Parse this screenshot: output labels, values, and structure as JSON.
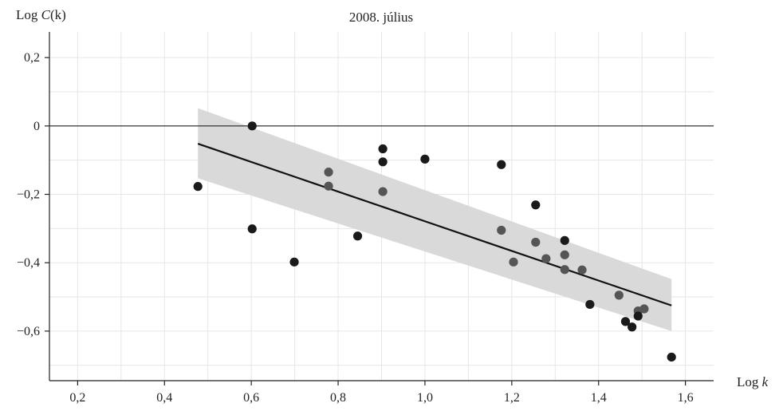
{
  "chart_data": {
    "type": "scatter",
    "title": "2008. július",
    "ylabel_pre": "Log ",
    "ylabel_var": "C",
    "ylabel_post": "(k)",
    "xlabel_pre": "Log ",
    "xlabel_var": "k",
    "xlim": [
      0.135,
      1.665
    ],
    "ylim": [
      -0.745,
      0.275
    ],
    "x_ticks": [
      {
        "value": 0.2,
        "label": "0,2"
      },
      {
        "value": 0.4,
        "label": "0,4"
      },
      {
        "value": 0.6,
        "label": "0,6"
      },
      {
        "value": 0.8,
        "label": "0,8"
      },
      {
        "value": 1.0,
        "label": "1,0"
      },
      {
        "value": 1.2,
        "label": "1,2"
      },
      {
        "value": 1.4,
        "label": "1,4"
      },
      {
        "value": 1.6,
        "label": "1,6"
      }
    ],
    "y_ticks": [
      {
        "value": 0.2,
        "label": "0,2"
      },
      {
        "value": 0.0,
        "label": "0"
      },
      {
        "value": -0.2,
        "label": "−0,2"
      },
      {
        "value": -0.4,
        "label": "−0,4"
      },
      {
        "value": -0.6,
        "label": "−0,6"
      }
    ],
    "grid": true,
    "zero_line": true,
    "colors": {
      "point_dark": "#1a1a1a",
      "point_gray": "#555555",
      "band": "#d9d9d9",
      "fit_line": "#111111",
      "grid": "#e6e6e6"
    },
    "fit": {
      "x": [
        0.477,
        1.568
      ],
      "y": [
        -0.052,
        -0.525
      ],
      "band_upper": [
        0.052,
        -0.448
      ],
      "band_lower": [
        -0.153,
        -0.6
      ]
    },
    "points": [
      {
        "x": 0.477,
        "y": -0.177,
        "shade": "dark"
      },
      {
        "x": 0.602,
        "y": 0.0,
        "shade": "dark"
      },
      {
        "x": 0.602,
        "y": -0.301,
        "shade": "dark"
      },
      {
        "x": 0.699,
        "y": -0.398,
        "shade": "dark"
      },
      {
        "x": 0.778,
        "y": -0.135,
        "shade": "gray"
      },
      {
        "x": 0.778,
        "y": -0.176,
        "shade": "gray"
      },
      {
        "x": 0.845,
        "y": -0.322,
        "shade": "dark"
      },
      {
        "x": 0.903,
        "y": -0.067,
        "shade": "dark"
      },
      {
        "x": 0.903,
        "y": -0.105,
        "shade": "dark"
      },
      {
        "x": 0.903,
        "y": -0.192,
        "shade": "gray"
      },
      {
        "x": 1.0,
        "y": -0.097,
        "shade": "dark"
      },
      {
        "x": 1.176,
        "y": -0.113,
        "shade": "dark"
      },
      {
        "x": 1.176,
        "y": -0.305,
        "shade": "gray"
      },
      {
        "x": 1.204,
        "y": -0.398,
        "shade": "gray"
      },
      {
        "x": 1.255,
        "y": -0.231,
        "shade": "dark"
      },
      {
        "x": 1.255,
        "y": -0.34,
        "shade": "gray"
      },
      {
        "x": 1.279,
        "y": -0.388,
        "shade": "gray"
      },
      {
        "x": 1.322,
        "y": -0.335,
        "shade": "dark"
      },
      {
        "x": 1.322,
        "y": -0.377,
        "shade": "gray"
      },
      {
        "x": 1.322,
        "y": -0.42,
        "shade": "gray"
      },
      {
        "x": 1.362,
        "y": -0.421,
        "shade": "gray"
      },
      {
        "x": 1.38,
        "y": -0.522,
        "shade": "dark"
      },
      {
        "x": 1.447,
        "y": -0.495,
        "shade": "gray"
      },
      {
        "x": 1.462,
        "y": -0.572,
        "shade": "dark"
      },
      {
        "x": 1.477,
        "y": -0.588,
        "shade": "dark"
      },
      {
        "x": 1.491,
        "y": -0.541,
        "shade": "gray"
      },
      {
        "x": 1.491,
        "y": -0.556,
        "shade": "dark"
      },
      {
        "x": 1.505,
        "y": -0.535,
        "shade": "gray"
      },
      {
        "x": 1.568,
        "y": -0.676,
        "shade": "dark"
      }
    ]
  }
}
